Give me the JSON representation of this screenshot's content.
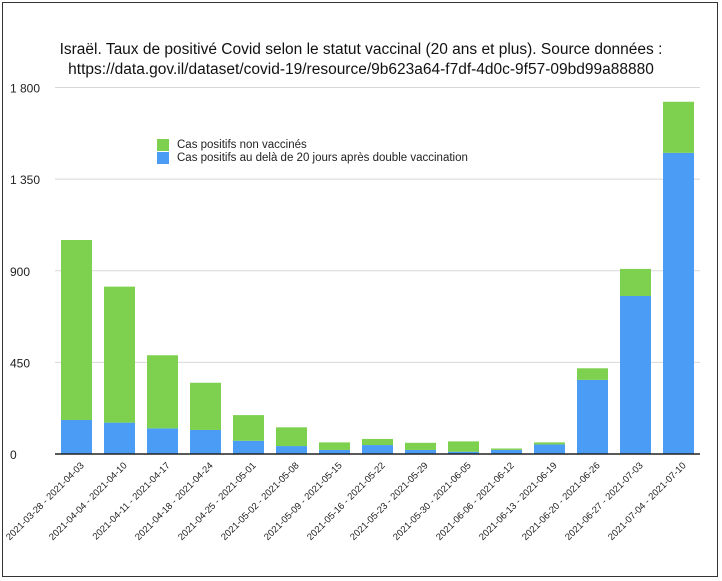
{
  "chart_data": {
    "type": "bar",
    "stacked": true,
    "title_lines": [
      "Israël. Taux de positivé Covid selon le statut vaccinal (20 ans et plus). Source données :",
      "https://data.gov.il/dataset/covid-19/resource/9b623a64-f7df-4d0c-9f57-09bd99a88880"
    ],
    "categories": [
      "2021-03-28 - 2021-04-03",
      "2021-04-04 - 2021-04-10",
      "2021-04-11 - 2021-04-17",
      "2021-04-18 - 2021-04-24",
      "2021-04-25 - 2021-05-01",
      "2021-05-02 - 2021-05-08",
      "2021-05-09 - 2021-05-15",
      "2021-05-16 - 2021-05-22",
      "2021-05-23 - 2021-05-29",
      "2021-05-30 - 2021-06-05",
      "2021-06-06 - 2021-06-12",
      "2021-06-13 - 2021-06-19",
      "2021-06-20 - 2021-06-26",
      "2021-06-27 - 2021-07-03",
      "2021-07-04 - 2021-07-10"
    ],
    "series": [
      {
        "name": "Cas positifs au delà de 20 jours après double vaccination",
        "color": "#4a9cf5",
        "values": [
          167,
          154,
          126,
          118,
          65,
          39,
          20,
          44,
          20,
          11,
          20,
          47,
          364,
          776,
          1479
        ]
      },
      {
        "name": "Cas positifs non vaccinés",
        "color": "#7ed04f",
        "values": [
          884,
          668,
          359,
          232,
          126,
          92,
          37,
          30,
          35,
          51,
          7,
          10,
          57,
          133,
          251
        ]
      }
    ],
    "legend_order": [
      "Cas positifs non vaccinés",
      "Cas positifs au delà de 20 jours après double vaccination"
    ],
    "yticks": [
      "0",
      "450",
      "900",
      "1 350",
      "1 800"
    ],
    "ylim": [
      0,
      1800
    ],
    "grid": true,
    "legend_position": "top-left",
    "xlabel": "",
    "ylabel": ""
  }
}
